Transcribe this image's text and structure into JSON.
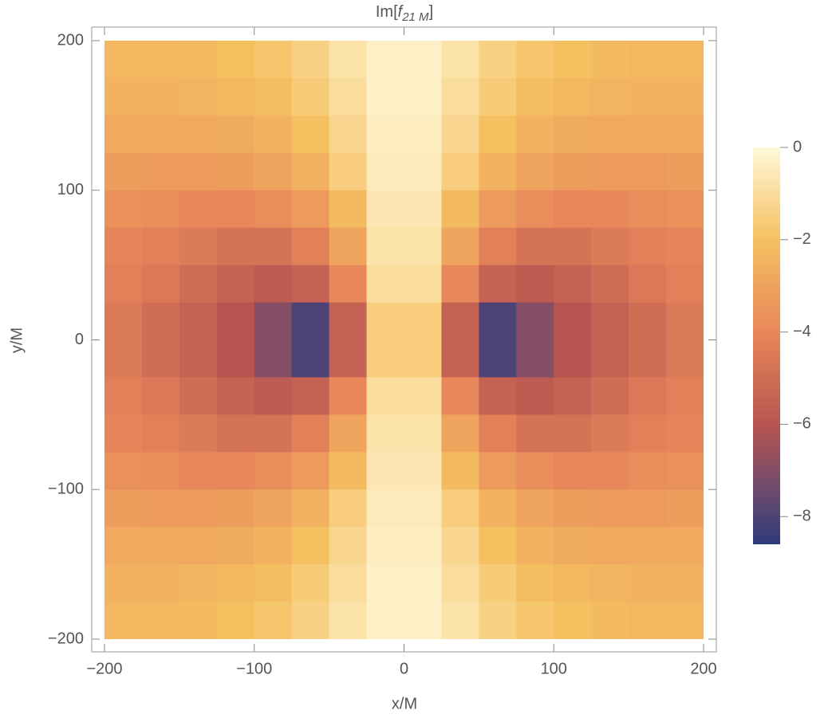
{
  "chart_data": {
    "type": "density",
    "title": {
      "prefix": "Im[",
      "symbol": "f",
      "subscript": "21 M",
      "suffix": "]"
    },
    "x_label": "x/M",
    "y_label": "y/M",
    "xlim": [
      -200,
      200
    ],
    "ylim": [
      -200,
      200
    ],
    "xticks": [
      {
        "value": -200,
        "label": "−200"
      },
      {
        "value": -100,
        "label": "−100"
      },
      0,
      100,
      200
    ],
    "yticks": [
      {
        "value": -200,
        "label": "−200"
      },
      {
        "value": -100,
        "label": "−100"
      },
      0,
      100,
      200
    ],
    "x": [
      -187.5,
      -162.5,
      -137.5,
      -112.5,
      -87.5,
      -62.5,
      -37.5,
      -12.5,
      12.5,
      37.5,
      62.5,
      87.5,
      112.5,
      137.5,
      162.5,
      187.5
    ],
    "y": [
      187.5,
      162.5,
      137.5,
      112.5,
      87.5,
      62.5,
      37.5,
      12.5,
      -12.5,
      -37.5,
      -62.5,
      -87.5,
      -112.5,
      -137.5,
      -162.5,
      -187.5
    ],
    "z": [
      [
        -2.3,
        -2.3,
        -2.2,
        -2,
        -1.8,
        -1.4,
        -0.8,
        -0.3,
        -0.3,
        -0.8,
        -1.4,
        -1.8,
        -2,
        -2.2,
        -2.3,
        -2.3
      ],
      [
        -2.5,
        -2.5,
        -2.4,
        -2.3,
        -2.1,
        -1.6,
        -1,
        -0.3,
        -0.3,
        -1,
        -1.6,
        -2.1,
        -2.3,
        -2.4,
        -2.5,
        -2.5
      ],
      [
        -2.8,
        -2.8,
        -2.8,
        -2.7,
        -2.5,
        -2,
        -1.2,
        -0.4,
        -0.4,
        -1.2,
        -2,
        -2.5,
        -2.7,
        -2.8,
        -2.8,
        -2.8
      ],
      [
        -3.2,
        -3.3,
        -3.3,
        -3.2,
        -3,
        -2.5,
        -1.5,
        -0.5,
        -0.5,
        -1.5,
        -2.5,
        -3,
        -3.2,
        -3.3,
        -3.3,
        -3.2
      ],
      [
        -3.7,
        -3.8,
        -4,
        -4,
        -3.8,
        -3.3,
        -2.2,
        -0.6,
        -0.6,
        -2.2,
        -3.3,
        -3.8,
        -4,
        -4,
        -3.8,
        -3.7
      ],
      [
        -4.1,
        -4.3,
        -4.5,
        -4.8,
        -4.8,
        -4.3,
        -3,
        -0.8,
        -0.8,
        -3,
        -4.3,
        -4.8,
        -4.8,
        -4.5,
        -4.3,
        -4.1
      ],
      [
        -4.3,
        -4.6,
        -5,
        -5.5,
        -5.8,
        -5.5,
        -4,
        -1,
        -1,
        -4,
        -5.5,
        -5.8,
        -5.5,
        -5,
        -4.6,
        -4.3
      ],
      [
        -4.5,
        -5,
        -5.5,
        -6,
        -7,
        -8,
        -5.5,
        -1.5,
        -1.5,
        -5.5,
        -8,
        -7,
        -6,
        -5.5,
        -5,
        -4.5
      ],
      [
        -4.5,
        -5,
        -5.5,
        -6,
        -7,
        -8,
        -5.5,
        -1.5,
        -1.5,
        -5.5,
        -8,
        -7,
        -6,
        -5.5,
        -5,
        -4.5
      ],
      [
        -4.3,
        -4.6,
        -5,
        -5.5,
        -5.8,
        -5.5,
        -4,
        -1,
        -1,
        -4,
        -5.5,
        -5.8,
        -5.5,
        -5,
        -4.6,
        -4.3
      ],
      [
        -4.1,
        -4.3,
        -4.5,
        -4.8,
        -4.8,
        -4.3,
        -3,
        -0.8,
        -0.8,
        -3,
        -4.3,
        -4.8,
        -4.8,
        -4.5,
        -4.3,
        -4.1
      ],
      [
        -3.7,
        -3.8,
        -4,
        -4,
        -3.8,
        -3.3,
        -2.2,
        -0.6,
        -0.6,
        -2.2,
        -3.3,
        -3.8,
        -4,
        -4,
        -3.8,
        -3.7
      ],
      [
        -3.2,
        -3.3,
        -3.3,
        -3.2,
        -3,
        -2.5,
        -1.5,
        -0.5,
        -0.5,
        -1.5,
        -2.5,
        -3,
        -3.2,
        -3.3,
        -3.3,
        -3.2
      ],
      [
        -2.8,
        -2.8,
        -2.8,
        -2.7,
        -2.5,
        -2,
        -1.2,
        -0.4,
        -0.4,
        -1.2,
        -2,
        -2.5,
        -2.7,
        -2.8,
        -2.8,
        -2.8
      ],
      [
        -2.5,
        -2.5,
        -2.4,
        -2.3,
        -2.1,
        -1.6,
        -1,
        -0.3,
        -0.3,
        -1,
        -1.6,
        -2.1,
        -2.3,
        -2.4,
        -2.5,
        -2.5
      ],
      [
        -2.3,
        -2.3,
        -2.2,
        -2,
        -1.8,
        -1.4,
        -0.8,
        -0.3,
        -0.3,
        -0.8,
        -1.4,
        -1.8,
        -2,
        -2.2,
        -2.3,
        -2.3
      ]
    ],
    "colorscale": [
      [
        -8.6,
        "#2d3a7a"
      ],
      [
        -7.5,
        "#6a4a70"
      ],
      [
        -6,
        "#b85550"
      ],
      [
        -4,
        "#e8875a"
      ],
      [
        -2,
        "#f5c060"
      ],
      [
        0,
        "#fff8d8"
      ]
    ],
    "colorbar_lim": [
      -8.6,
      0
    ],
    "colorbar_ticks": [
      0,
      {
        "value": -2,
        "label": "−2"
      },
      {
        "value": -4,
        "label": "−4"
      },
      {
        "value": -6,
        "label": "−6"
      },
      {
        "value": -8,
        "label": "−8"
      }
    ]
  }
}
